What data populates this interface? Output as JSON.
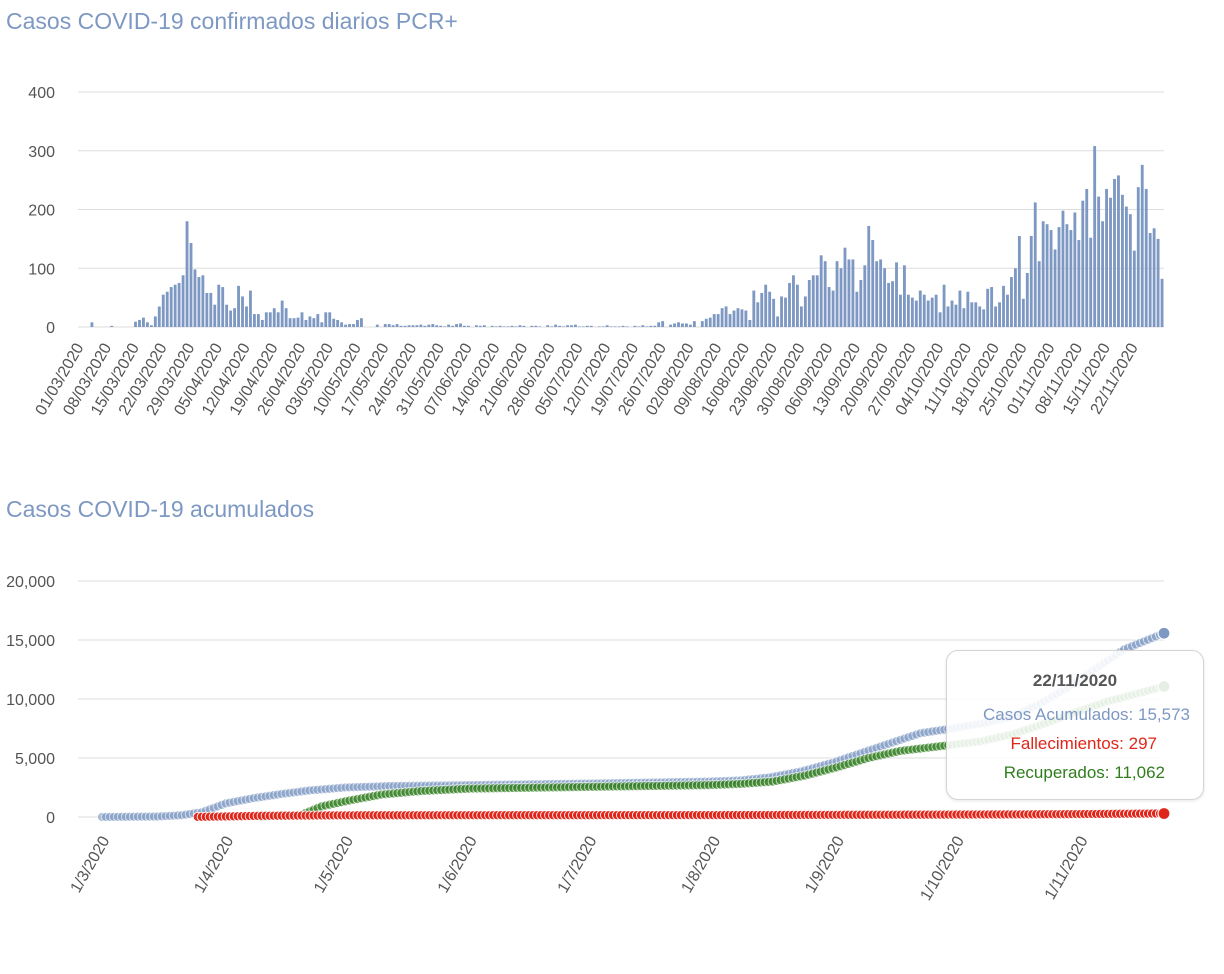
{
  "chart_data": [
    {
      "type": "bar",
      "title": "Casos COVID-19 confirmados diarios PCR+",
      "xlabel": "",
      "ylabel": "",
      "ylim": [
        0,
        400
      ],
      "yticks": [
        "0",
        "100",
        "200",
        "300",
        "400"
      ],
      "xticklabels": [
        "01/03/2020",
        "08/03/2020",
        "15/03/2020",
        "22/03/2020",
        "29/03/2020",
        "05/04/2020",
        "12/04/2020",
        "19/04/2020",
        "26/04/2020",
        "03/05/2020",
        "10/05/2020",
        "17/05/2020",
        "24/05/2020",
        "31/05/2020",
        "07/06/2020",
        "14/06/2020",
        "21/06/2020",
        "28/06/2020",
        "05/07/2020",
        "12/07/2020",
        "19/07/2020",
        "26/07/2020",
        "02/08/2020",
        "09/08/2020",
        "16/08/2020",
        "23/08/2020",
        "30/08/2020",
        "06/09/2020",
        "13/09/2020",
        "20/09/2020",
        "27/09/2020",
        "04/10/2020",
        "11/10/2020",
        "18/10/2020",
        "25/10/2020",
        "01/11/2020",
        "08/11/2020",
        "15/11/2020",
        "22/11/2020"
      ],
      "start_date": "01/03/2020",
      "end_date": "22/11/2020",
      "color": "#7d98c3",
      "values": [
        0,
        0,
        0,
        8,
        0,
        0,
        0,
        0,
        2,
        0,
        0,
        0,
        0,
        0,
        9,
        12,
        16,
        8,
        3,
        18,
        35,
        55,
        60,
        68,
        72,
        75,
        88,
        180,
        143,
        98,
        85,
        88,
        58,
        58,
        38,
        72,
        68,
        38,
        28,
        32,
        70,
        52,
        35,
        62,
        22,
        22,
        12,
        25,
        25,
        32,
        25,
        45,
        32,
        15,
        15,
        16,
        25,
        12,
        18,
        15,
        22,
        8,
        25,
        25,
        14,
        12,
        8,
        4,
        5,
        5,
        12,
        15,
        0,
        0,
        0,
        4,
        0,
        5,
        5,
        3,
        5,
        2,
        2,
        3,
        3,
        3,
        4,
        2,
        4,
        5,
        3,
        2,
        1,
        4,
        2,
        5,
        6,
        2,
        2,
        0,
        3,
        2,
        3,
        0,
        2,
        1,
        2,
        1,
        1,
        2,
        1,
        3,
        2,
        0,
        2,
        2,
        1,
        0,
        3,
        1,
        4,
        2,
        1,
        3,
        3,
        4,
        1,
        1,
        2,
        2,
        0,
        1,
        1,
        3,
        1,
        1,
        1,
        2,
        1,
        0,
        2,
        1,
        3,
        1,
        2,
        2,
        8,
        10,
        0,
        4,
        6,
        8,
        6,
        6,
        4,
        10,
        0,
        10,
        14,
        16,
        22,
        22,
        32,
        35,
        22,
        28,
        32,
        30,
        28,
        12,
        62,
        42,
        58,
        72,
        60,
        48,
        18,
        52,
        50,
        75,
        88,
        72,
        35,
        52,
        80,
        88,
        88,
        122,
        112,
        68,
        62,
        112,
        100,
        135,
        115,
        115,
        60,
        80,
        105,
        172,
        148,
        112,
        115,
        100,
        75,
        78,
        110,
        55,
        105,
        55,
        50,
        45,
        62,
        55,
        45,
        50,
        55,
        25,
        72,
        35,
        45,
        38,
        62,
        32,
        60,
        42,
        42,
        35,
        30,
        65,
        68,
        35,
        42,
        70,
        55,
        85,
        100,
        155,
        48,
        92,
        155,
        212,
        112,
        180,
        175,
        165,
        132,
        170,
        198,
        175,
        165,
        195,
        148,
        215,
        235,
        152,
        308,
        222,
        180,
        235,
        220,
        252,
        258,
        225,
        205,
        192,
        130,
        238,
        276,
        235,
        160,
        168,
        150,
        82
      ]
    },
    {
      "type": "scatter",
      "title": "Casos COVID-19 acumulados",
      "xlabel": "",
      "ylabel": "",
      "ylim": [
        0,
        20000
      ],
      "yticks": [
        "0",
        "5,000",
        "10,000",
        "15,000",
        "20,000"
      ],
      "xticklabels": [
        "1/3/2020",
        "1/4/2020",
        "1/5/2020",
        "1/6/2020",
        "1/7/2020",
        "1/8/2020",
        "1/9/2020",
        "1/10/2020",
        "1/11/2020"
      ],
      "start_date": "01/03/2020",
      "end_date": "22/11/2020",
      "series": [
        {
          "name": "Casos Acumulados",
          "color": "#7d98c3",
          "final": 15573,
          "anchors": [
            [
              0,
              0
            ],
            [
              14,
              40
            ],
            [
              20,
              150
            ],
            [
              25,
              400
            ],
            [
              31,
              1150
            ],
            [
              38,
              1600
            ],
            [
              45,
              1950
            ],
            [
              52,
              2250
            ],
            [
              61,
              2500
            ],
            [
              72,
              2620
            ],
            [
              92,
              2700
            ],
            [
              122,
              2830
            ],
            [
              152,
              3000
            ],
            [
              160,
              3100
            ],
            [
              167,
              3350
            ],
            [
              175,
              3850
            ],
            [
              183,
              4600
            ],
            [
              190,
              5400
            ],
            [
              197,
              6200
            ],
            [
              205,
              7100
            ],
            [
              213,
              7500
            ],
            [
              221,
              7950
            ],
            [
              228,
              8500
            ],
            [
              235,
              9600
            ],
            [
              242,
              11000
            ],
            [
              249,
              12600
            ],
            [
              256,
              14200
            ],
            [
              266,
              15573
            ]
          ]
        },
        {
          "name": "Fallecimientos",
          "color": "#e0261a",
          "final": 297,
          "start_day": 24,
          "anchors": [
            [
              24,
              10
            ],
            [
              30,
              40
            ],
            [
              40,
              100
            ],
            [
              60,
              140
            ],
            [
              90,
              150
            ],
            [
              152,
              160
            ],
            [
              180,
              180
            ],
            [
              210,
              200
            ],
            [
              240,
              235
            ],
            [
              266,
              297
            ]
          ]
        },
        {
          "name": "Recuperados",
          "color": "#2f7d1d",
          "final": 11062,
          "start_day": 40,
          "anchors": [
            [
              40,
              0
            ],
            [
              50,
              200
            ],
            [
              55,
              900
            ],
            [
              62,
              1400
            ],
            [
              70,
              1900
            ],
            [
              80,
              2200
            ],
            [
              92,
              2400
            ],
            [
              122,
              2550
            ],
            [
              152,
              2700
            ],
            [
              160,
              2800
            ],
            [
              168,
              3000
            ],
            [
              176,
              3500
            ],
            [
              184,
              4200
            ],
            [
              192,
              5000
            ],
            [
              200,
              5600
            ],
            [
              210,
              6000
            ],
            [
              220,
              6400
            ],
            [
              228,
              7000
            ],
            [
              236,
              7900
            ],
            [
              244,
              8900
            ],
            [
              252,
              9800
            ],
            [
              266,
              11062
            ]
          ]
        }
      ]
    }
  ],
  "tooltip": {
    "date": "22/11/2020",
    "casos": "Casos Acumulados: 15,573",
    "fallecimientos": "Fallecimientos: 297",
    "recuperados": "Recuperados: 11,062"
  }
}
